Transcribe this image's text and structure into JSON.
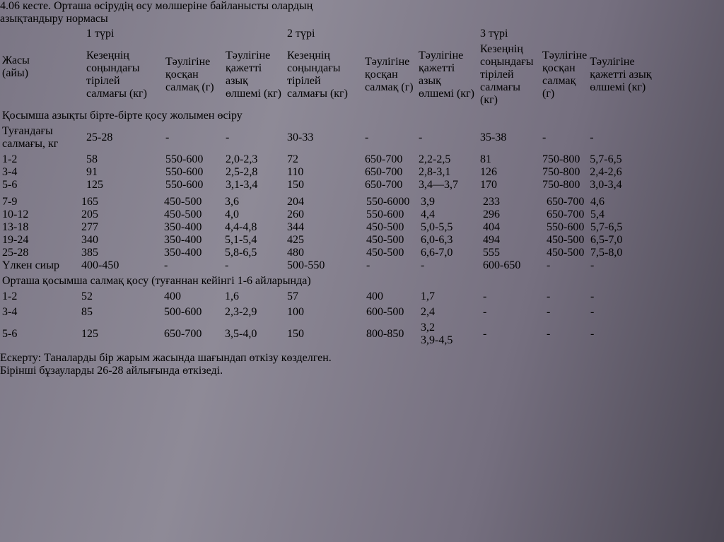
{
  "colors": {
    "panel": "#fbfafb",
    "ink": "#17161a"
  },
  "title": {
    "line1_clipped": "4.06 кесте. Орташа өсірудің өсу мөлшеріне байланысты олардың",
    "line2": "азықтандыру нормасы"
  },
  "table": {
    "col0_header_line1": "Жасы",
    "col0_header_line2": "(айы)",
    "groups": [
      "1 түрі",
      "2 түрі",
      "3 түрі"
    ],
    "subheaders": [
      "Кезеңнің соңындағы тірілей салмағы (кг)",
      "Тәулігіне қосқан салмақ (г)",
      "Тәулігіне қажетті азық өлшемі (кг)"
    ],
    "section1_title": "Қосымша азықты бірте-бірте қосу жолымен өсіру",
    "birth_row": {
      "label": "Туғандағы салмағы, кг",
      "cells": [
        "25-28",
        "-",
        "-",
        "30-33",
        "-",
        "-",
        "35-38",
        "-",
        "-"
      ]
    },
    "block1_rows": [
      {
        "label": "1-2",
        "cells": [
          "58",
          "550-600",
          "2,0-2,3",
          "72",
          "650-700",
          "2,2-2,5",
          "81",
          "750-800",
          "5,7-6,5"
        ]
      },
      {
        "label": "3-4",
        "cells": [
          "91",
          "550-600",
          "2,5-2,8",
          "110",
          "650-700",
          "2,8-3,1",
          "126",
          "750-800",
          "2,4-2,6"
        ]
      },
      {
        "label": "5-6",
        "cells": [
          "125",
          "550-600",
          "3,1-3,4",
          "150",
          "650-700",
          "3,4—3,7",
          "170",
          "750-800",
          "3,0-3,4"
        ]
      }
    ],
    "block2_rows": [
      {
        "label": "7-9",
        "cells": [
          "165",
          "450-500",
          "3,6",
          "204",
          "550-6000",
          "3,9",
          "233",
          "650-700",
          "4,6"
        ]
      },
      {
        "label": "10-12",
        "cells": [
          "205",
          "450-500",
          "4,0",
          "260",
          "550-600",
          "4,4",
          "296",
          "650-700",
          "5,4"
        ]
      },
      {
        "label": "13-18",
        "cells": [
          "277",
          "350-400",
          "4,4-4,8",
          "344",
          "450-500",
          "5,0-5,5",
          "404",
          "550-600",
          "5,7-6,5"
        ]
      },
      {
        "label": "19-24",
        "cells": [
          "340",
          "350-400",
          "5,1-5,4",
          "425",
          "450-500",
          "6,0-6,3",
          "494",
          "450-500",
          "6,5-7,0"
        ]
      },
      {
        "label": "25-28",
        "cells": [
          "385",
          "350-400",
          "5,8-6,5",
          "480",
          "450-500",
          "6,6-7,0",
          "555",
          "450-500",
          "7,5-8,0"
        ]
      },
      {
        "label": "Үлкен сиыр",
        "cells": [
          "400-450",
          "-",
          "-",
          "500-550",
          "-",
          "-",
          "600-650",
          "-",
          "-"
        ]
      }
    ],
    "section2_title": "Орташа қосымша салмақ қосу (туғаннан кейінгі 1-6 айларында)",
    "section2_rows": [
      {
        "label": "1-2",
        "cells": [
          "52",
          "400",
          "1,6",
          "57",
          "400",
          "1,7",
          "-",
          "-",
          "-"
        ]
      },
      {
        "label": "3-4",
        "cells": [
          "85",
          "500-600",
          "2,3-2,9",
          "100",
          "600-500",
          "2,4",
          "-",
          "-",
          "-"
        ]
      },
      {
        "label": "5-6",
        "cells": [
          "125",
          "650-700",
          "3,5-4,0",
          "150",
          "800-850",
          "3,2",
          "-",
          "-",
          "-"
        ],
        "extra": "3,9-4,5"
      }
    ]
  },
  "note": {
    "label": "Ескерту:",
    "line1": "Таналарды бір жарым жасында шағындап өткізу көзделген.",
    "line2": "Бірінші бұзауларды 26-28 айлығында өткізеді."
  }
}
